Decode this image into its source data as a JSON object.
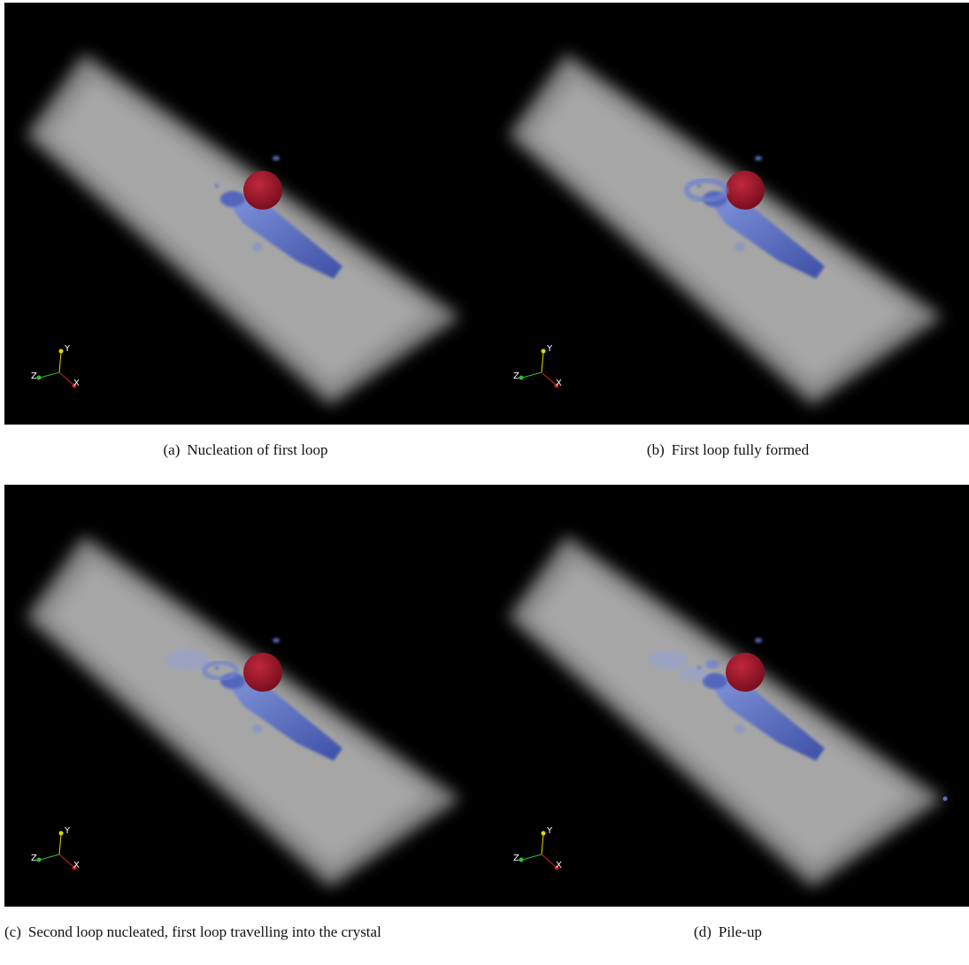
{
  "figure": {
    "panels": [
      {
        "label": "(a)",
        "caption": "Nucleation of first loop",
        "axes": {
          "x": "X",
          "y": "Y",
          "z": "Z"
        }
      },
      {
        "label": "(b)",
        "caption": "First loop fully formed",
        "axes": {
          "x": "X",
          "y": "Y",
          "z": "Z"
        }
      },
      {
        "label": "(c)",
        "caption": "Second loop nucleated, first loop travelling into the crystal",
        "axes": {
          "x": "X",
          "y": "Y",
          "z": "Z"
        }
      },
      {
        "label": "(d)",
        "caption": "Pile-up",
        "axes": {
          "x": "X",
          "y": "Y",
          "z": "Z"
        }
      }
    ]
  }
}
